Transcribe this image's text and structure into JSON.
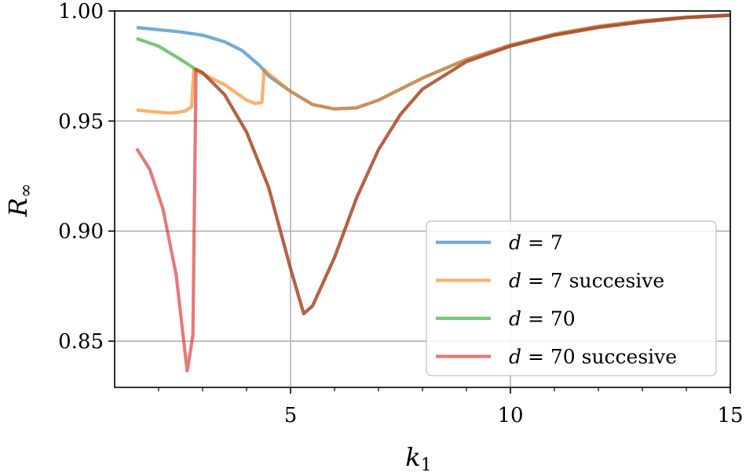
{
  "chart_data": {
    "type": "line",
    "xlabel": {
      "base": "k",
      "sub": "1"
    },
    "ylabel": {
      "base": "R",
      "sub": "∞"
    },
    "xlim": [
      1,
      15
    ],
    "ylim": [
      0.829,
      1.0
    ],
    "xticks": [
      5,
      10,
      15
    ],
    "xtick_labels": [
      "5",
      "10",
      "15"
    ],
    "xminor": [
      2,
      3,
      4,
      6,
      7,
      8,
      9,
      11,
      12,
      13,
      14
    ],
    "yticks": [
      0.85,
      0.9,
      0.95,
      1.0
    ],
    "ytick_labels": [
      "0.85",
      "0.90",
      "0.95",
      "1.00"
    ],
    "grid": true,
    "legend_position": "lower-right",
    "series": [
      {
        "name": "d = 7",
        "legend": {
          "math": "d",
          "rest": " = 7"
        },
        "color": "#1f77b4",
        "x": [
          1.5,
          2.0,
          2.5,
          3.0,
          3.5,
          3.9,
          4.3,
          4.5,
          5.0,
          5.5,
          6.0,
          6.5,
          7.0,
          8.0,
          9.0,
          10.0,
          11.0,
          12.0,
          13.0,
          14.0,
          15.0
        ],
        "y": [
          0.9925,
          0.9915,
          0.9905,
          0.989,
          0.986,
          0.982,
          0.9752,
          0.9705,
          0.9635,
          0.9575,
          0.9555,
          0.956,
          0.9595,
          0.9695,
          0.978,
          0.9845,
          0.9895,
          0.993,
          0.9955,
          0.9972,
          0.9982
        ]
      },
      {
        "name": "d = 7 succesive",
        "legend": {
          "math": "d",
          "rest": " = 7 succesive"
        },
        "color": "#ff7f0e",
        "x": [
          1.5,
          2.0,
          2.3,
          2.6,
          2.75,
          2.8,
          3.0,
          3.5,
          4.0,
          4.2,
          4.35,
          4.4,
          4.5,
          5.0,
          5.5,
          6.0,
          6.5,
          7.0,
          8.0,
          9.0,
          10.0,
          11.0,
          12.0,
          13.0,
          14.0,
          15.0
        ],
        "y": [
          0.955,
          0.954,
          0.9536,
          0.9545,
          0.9565,
          0.9735,
          0.9715,
          0.9665,
          0.9595,
          0.958,
          0.9585,
          0.9735,
          0.9715,
          0.9635,
          0.9575,
          0.9555,
          0.956,
          0.9595,
          0.9695,
          0.978,
          0.9845,
          0.9895,
          0.993,
          0.9955,
          0.9972,
          0.9982
        ]
      },
      {
        "name": "d = 70",
        "legend": {
          "math": "d",
          "rest": " = 70"
        },
        "color": "#2ca02c",
        "x": [
          1.5,
          2.0,
          2.5,
          2.85,
          3.0,
          3.5,
          4.0,
          4.5,
          5.0,
          5.3,
          5.5,
          6.0,
          6.5,
          7.0,
          7.5,
          8.0,
          9.0,
          10.0,
          11.0,
          12.0,
          13.0,
          14.0,
          15.0
        ],
        "y": [
          0.9875,
          0.984,
          0.978,
          0.9735,
          0.972,
          0.962,
          0.945,
          0.92,
          0.883,
          0.8625,
          0.866,
          0.888,
          0.915,
          0.937,
          0.953,
          0.9645,
          0.977,
          0.984,
          0.989,
          0.9925,
          0.995,
          0.997,
          0.998
        ]
      },
      {
        "name": "d = 70 succesive",
        "legend": {
          "math": "d",
          "rest": " = 70 succesive"
        },
        "color": "#d62728",
        "x": [
          1.5,
          1.8,
          2.1,
          2.4,
          2.6,
          2.65,
          2.72,
          2.78,
          2.85,
          3.0,
          3.5,
          4.0,
          4.5,
          5.0,
          5.3,
          5.5,
          6.0,
          6.5,
          7.0,
          7.5,
          8.0,
          9.0,
          10.0,
          11.0,
          12.0,
          13.0,
          14.0,
          15.0
        ],
        "y": [
          0.9375,
          0.928,
          0.91,
          0.88,
          0.845,
          0.8365,
          0.845,
          0.853,
          0.9735,
          0.972,
          0.962,
          0.945,
          0.92,
          0.883,
          0.8625,
          0.866,
          0.888,
          0.915,
          0.937,
          0.953,
          0.9645,
          0.977,
          0.984,
          0.989,
          0.9925,
          0.995,
          0.997,
          0.998
        ]
      }
    ]
  }
}
